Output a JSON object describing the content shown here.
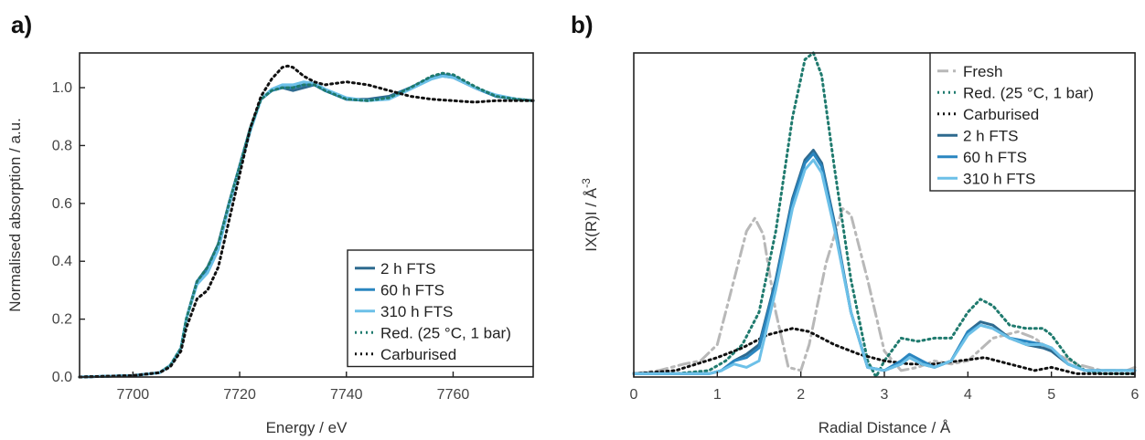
{
  "colors": {
    "fts_2h": "#2e6a8f",
    "fts_60h": "#2a86c0",
    "fts_310h": "#6cc0e8",
    "reduced": "#1f7a6e",
    "carburised": "#111111",
    "fresh": "#b8b8b8"
  },
  "chart_data": [
    {
      "type": "line",
      "panel_label": "a)",
      "xlabel": "Energy / eV",
      "ylabel": "Normalised absorption / a.u.",
      "xlim": [
        7690,
        7775
      ],
      "ylim": [
        0,
        1.12
      ],
      "xticks": [
        7700,
        7720,
        7740,
        7760
      ],
      "yticks": [
        0.0,
        0.2,
        0.4,
        0.6,
        0.8,
        1.0
      ],
      "ytick_labels": [
        "0.0",
        "0.2",
        "0.4",
        "0.6",
        "0.8",
        "1.0"
      ],
      "grid": false,
      "legend_position": "bottom-right",
      "series": [
        {
          "name": "2 h FTS",
          "color": "#2e6a8f",
          "style": "solid",
          "x": [
            7690,
            7700,
            7705,
            7707,
            7709,
            7710,
            7712,
            7714,
            7716,
            7718,
            7720,
            7722,
            7724,
            7726,
            7728,
            7730,
            7732,
            7734,
            7736,
            7740,
            7744,
            7748,
            7752,
            7756,
            7758,
            7760,
            7764,
            7768,
            7772,
            7775
          ],
          "y": [
            0,
            0.005,
            0.015,
            0.04,
            0.1,
            0.2,
            0.33,
            0.38,
            0.46,
            0.6,
            0.73,
            0.86,
            0.96,
            0.99,
            1.0,
            0.99,
            1.0,
            1.01,
            0.99,
            0.96,
            0.96,
            0.97,
            1.0,
            1.035,
            1.04,
            1.035,
            1.0,
            0.97,
            0.96,
            0.955
          ]
        },
        {
          "name": "60 h FTS",
          "color": "#2a86c0",
          "style": "solid",
          "x": [
            7690,
            7700,
            7705,
            7707,
            7709,
            7710,
            7712,
            7714,
            7716,
            7718,
            7720,
            7722,
            7724,
            7726,
            7728,
            7730,
            7732,
            7734,
            7736,
            7740,
            7744,
            7748,
            7752,
            7756,
            7758,
            7760,
            7764,
            7768,
            7772,
            7775
          ],
          "y": [
            0,
            0.005,
            0.015,
            0.04,
            0.1,
            0.2,
            0.33,
            0.37,
            0.45,
            0.6,
            0.73,
            0.86,
            0.96,
            0.99,
            1.0,
            1.0,
            1.01,
            1.01,
            0.99,
            0.96,
            0.955,
            0.965,
            1.0,
            1.035,
            1.045,
            1.04,
            1.0,
            0.97,
            0.96,
            0.955
          ]
        },
        {
          "name": "310 h FTS",
          "color": "#6cc0e8",
          "style": "solid",
          "x": [
            7690,
            7700,
            7705,
            7707,
            7709,
            7710,
            7712,
            7714,
            7716,
            7718,
            7720,
            7722,
            7724,
            7726,
            7728,
            7730,
            7732,
            7734,
            7736,
            7740,
            7744,
            7748,
            7752,
            7756,
            7758,
            7760,
            7764,
            7768,
            7772,
            7775
          ],
          "y": [
            0,
            0.005,
            0.015,
            0.04,
            0.1,
            0.2,
            0.32,
            0.36,
            0.44,
            0.59,
            0.72,
            0.85,
            0.96,
            0.995,
            1.01,
            1.01,
            1.02,
            1.015,
            0.995,
            0.965,
            0.955,
            0.96,
            0.995,
            1.03,
            1.04,
            1.035,
            1.0,
            0.975,
            0.96,
            0.955
          ]
        },
        {
          "name": "Red. (25 °C, 1 bar)",
          "color": "#1f7a6e",
          "style": "dotted",
          "x": [
            7690,
            7700,
            7705,
            7707,
            7709,
            7710,
            7712,
            7714,
            7716,
            7718,
            7720,
            7722,
            7724,
            7726,
            7728,
            7730,
            7732,
            7734,
            7736,
            7740,
            7744,
            7748,
            7752,
            7756,
            7758,
            7760,
            7764,
            7768,
            7772,
            7775
          ],
          "y": [
            0,
            0.005,
            0.015,
            0.04,
            0.1,
            0.2,
            0.33,
            0.38,
            0.46,
            0.6,
            0.73,
            0.86,
            0.96,
            0.99,
            1.0,
            1.0,
            1.01,
            1.01,
            0.99,
            0.96,
            0.955,
            0.965,
            1.0,
            1.04,
            1.05,
            1.045,
            1.005,
            0.97,
            0.96,
            0.955
          ]
        },
        {
          "name": "Carburised",
          "color": "#111111",
          "style": "dotted",
          "x": [
            7690,
            7700,
            7705,
            7707,
            7709,
            7710,
            7712,
            7714,
            7716,
            7718,
            7720,
            7722,
            7724,
            7726,
            7728,
            7729,
            7730,
            7732,
            7734,
            7736,
            7740,
            7744,
            7748,
            7752,
            7756,
            7760,
            7764,
            7768,
            7772,
            7775
          ],
          "y": [
            0,
            0.005,
            0.015,
            0.035,
            0.09,
            0.17,
            0.27,
            0.3,
            0.38,
            0.54,
            0.7,
            0.86,
            0.97,
            1.03,
            1.07,
            1.075,
            1.07,
            1.04,
            1.02,
            1.01,
            1.02,
            1.01,
            0.99,
            0.97,
            0.96,
            0.955,
            0.95,
            0.955,
            0.955,
            0.955
          ]
        }
      ]
    },
    {
      "type": "line",
      "panel_label": "b)",
      "xlabel": "Radial Distance / Å",
      "ylabel": "IX(R)I / Å",
      "ylabel_superscript": "-3",
      "xlim": [
        0,
        6
      ],
      "ylim": [
        0,
        1.0
      ],
      "xticks": [
        0,
        1,
        2,
        3,
        4,
        5,
        6
      ],
      "yticks": [],
      "grid": false,
      "legend_position": "top-right",
      "series": [
        {
          "name": "Fresh",
          "color": "#b8b8b8",
          "style": "dashdot",
          "x": [
            0,
            0.3,
            0.6,
            0.8,
            1.0,
            1.2,
            1.35,
            1.45,
            1.55,
            1.7,
            1.85,
            2.0,
            2.1,
            2.3,
            2.5,
            2.6,
            2.8,
            3.0,
            3.2,
            3.4,
            3.6,
            3.8,
            4.0,
            4.3,
            4.6,
            4.8,
            5.0,
            5.3,
            5.6,
            5.9,
            6.0
          ],
          "y": [
            0.01,
            0.02,
            0.04,
            0.05,
            0.1,
            0.3,
            0.45,
            0.49,
            0.44,
            0.2,
            0.03,
            0.02,
            0.1,
            0.35,
            0.52,
            0.5,
            0.3,
            0.08,
            0.02,
            0.03,
            0.05,
            0.04,
            0.05,
            0.12,
            0.14,
            0.12,
            0.08,
            0.04,
            0.02,
            0.02,
            0.03
          ]
        },
        {
          "name": "Red. (25 °C, 1 bar)",
          "color": "#1f7a6e",
          "style": "dotted",
          "x": [
            0,
            0.5,
            0.9,
            1.1,
            1.3,
            1.5,
            1.7,
            1.9,
            2.05,
            2.15,
            2.25,
            2.4,
            2.6,
            2.8,
            2.9,
            3.0,
            3.2,
            3.4,
            3.6,
            3.8,
            4.0,
            4.15,
            4.3,
            4.5,
            4.7,
            4.9,
            5.0,
            5.2,
            5.4,
            5.6,
            6.0
          ],
          "y": [
            0.01,
            0.01,
            0.02,
            0.05,
            0.1,
            0.2,
            0.45,
            0.8,
            0.98,
            1.0,
            0.93,
            0.65,
            0.3,
            0.05,
            0.0,
            0.05,
            0.12,
            0.11,
            0.12,
            0.12,
            0.2,
            0.24,
            0.22,
            0.16,
            0.15,
            0.15,
            0.13,
            0.06,
            0.02,
            0.01,
            0.01
          ]
        },
        {
          "name": "Carburised",
          "color": "#111111",
          "style": "dotted",
          "x": [
            0,
            0.5,
            1.0,
            1.3,
            1.6,
            1.9,
            2.1,
            2.4,
            2.7,
            3.0,
            3.3,
            3.6,
            3.9,
            4.2,
            4.5,
            4.8,
            5.0,
            5.3,
            5.6,
            6.0
          ],
          "y": [
            0.01,
            0.02,
            0.06,
            0.09,
            0.13,
            0.15,
            0.14,
            0.1,
            0.07,
            0.05,
            0.04,
            0.04,
            0.05,
            0.06,
            0.04,
            0.02,
            0.03,
            0.01,
            0.01,
            0.01
          ]
        },
        {
          "name": "2 h FTS",
          "color": "#2e6a8f",
          "style": "solid",
          "x": [
            0,
            0.5,
            0.9,
            1.05,
            1.2,
            1.35,
            1.5,
            1.7,
            1.9,
            2.05,
            2.15,
            2.25,
            2.4,
            2.6,
            2.8,
            3.0,
            3.2,
            3.3,
            3.45,
            3.6,
            3.8,
            4.0,
            4.15,
            4.3,
            4.5,
            4.7,
            4.9,
            5.0,
            5.2,
            5.4,
            5.6,
            6.0
          ],
          "y": [
            0.01,
            0.01,
            0.01,
            0.02,
            0.05,
            0.07,
            0.1,
            0.3,
            0.55,
            0.67,
            0.7,
            0.66,
            0.48,
            0.2,
            0.03,
            0.02,
            0.04,
            0.06,
            0.04,
            0.03,
            0.05,
            0.14,
            0.17,
            0.16,
            0.12,
            0.1,
            0.09,
            0.08,
            0.04,
            0.02,
            0.02,
            0.02
          ]
        },
        {
          "name": "60 h FTS",
          "color": "#2a86c0",
          "style": "solid",
          "x": [
            0,
            0.5,
            0.9,
            1.05,
            1.2,
            1.35,
            1.5,
            1.7,
            1.9,
            2.05,
            2.15,
            2.25,
            2.4,
            2.6,
            2.8,
            3.0,
            3.2,
            3.3,
            3.45,
            3.6,
            3.8,
            4.0,
            4.15,
            4.3,
            4.5,
            4.7,
            4.9,
            5.0,
            5.2,
            5.4,
            5.6,
            6.0
          ],
          "y": [
            0.01,
            0.01,
            0.01,
            0.02,
            0.05,
            0.06,
            0.09,
            0.29,
            0.54,
            0.66,
            0.69,
            0.65,
            0.47,
            0.2,
            0.03,
            0.02,
            0.05,
            0.07,
            0.05,
            0.03,
            0.05,
            0.14,
            0.16,
            0.15,
            0.12,
            0.11,
            0.1,
            0.09,
            0.04,
            0.02,
            0.02,
            0.02
          ]
        },
        {
          "name": "310 h FTS",
          "color": "#6cc0e8",
          "style": "solid",
          "x": [
            0,
            0.5,
            0.9,
            1.05,
            1.2,
            1.35,
            1.5,
            1.7,
            1.9,
            2.05,
            2.15,
            2.25,
            2.4,
            2.6,
            2.8,
            3.0,
            3.2,
            3.3,
            3.45,
            3.6,
            3.8,
            4.0,
            4.15,
            4.3,
            4.5,
            4.7,
            4.9,
            5.0,
            5.2,
            5.4,
            5.6,
            6.0
          ],
          "y": [
            0.01,
            0.01,
            0.01,
            0.02,
            0.04,
            0.03,
            0.05,
            0.27,
            0.52,
            0.64,
            0.67,
            0.63,
            0.46,
            0.2,
            0.03,
            0.02,
            0.04,
            0.06,
            0.04,
            0.03,
            0.05,
            0.13,
            0.16,
            0.15,
            0.12,
            0.1,
            0.1,
            0.09,
            0.04,
            0.02,
            0.02,
            0.02
          ]
        }
      ]
    }
  ]
}
